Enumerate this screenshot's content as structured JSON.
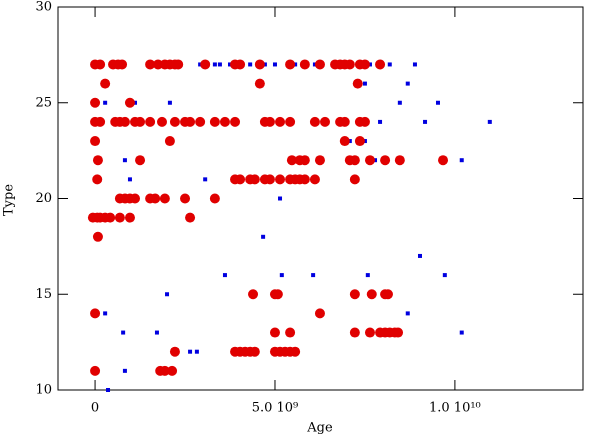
{
  "chart_data": {
    "type": "scatter",
    "x_label": "Age",
    "y_label": "Type",
    "xlim": [
      -1030000000.0,
      13560000000.0
    ],
    "ylim": [
      10,
      30
    ],
    "xticks": [
      0,
      {
        "value": 5000000000.0,
        "label": "5.0 10⁹"
      },
      {
        "value": 10000000000.0,
        "label": "1.0 10¹⁰"
      }
    ],
    "yticks": [
      10,
      15,
      20,
      25,
      30
    ],
    "series": [
      {
        "color": "#0000e0",
        "marker": "square",
        "x": [
          2360000000.0,
          2920000000.0,
          3330000000.0,
          3470000000.0,
          3750000000.0,
          4310000000.0,
          4720000000.0,
          5000000000.0,
          5560000000.0,
          6110000000.0,
          7640000000.0,
          8190000000.0,
          8890000000.0,
          7500000000.0,
          8690000000.0,
          280000000.0,
          1110000000.0,
          2080000000.0,
          8470000000.0,
          9530000000.0,
          5140000000.0,
          7920000000.0,
          9170000000.0,
          10970000000.0,
          7080000000.0,
          7500000000.0,
          830000000.0,
          7780000000.0,
          10190000000.0,
          970000000.0,
          3060000000.0,
          5140000000.0,
          4670000000.0,
          9030000000.0,
          3610000000.0,
          5190000000.0,
          6060000000.0,
          7580000000.0,
          9720000000.0,
          2000000000.0,
          280000000.0,
          8690000000.0,
          780000000.0,
          1720000000.0,
          10190000000.0,
          2640000000.0,
          2830000000.0,
          830000000.0,
          360000000.0
        ],
        "values": [
          27,
          27,
          27,
          27,
          27,
          27,
          27,
          27,
          27,
          27,
          27,
          27,
          27,
          26,
          26,
          25,
          25,
          25,
          25,
          25,
          24,
          24,
          24,
          24,
          23,
          23,
          22,
          22,
          22,
          21,
          21,
          20,
          18,
          17,
          16,
          16,
          16,
          16,
          16,
          15,
          14,
          14,
          13,
          13,
          13,
          12,
          12,
          11,
          10
        ]
      },
      {
        "color": "#e00000",
        "marker": "circle",
        "x": [
          0,
          140000000.0,
          500000000.0,
          640000000.0,
          750000000.0,
          1530000000.0,
          1750000000.0,
          1940000000.0,
          2080000000.0,
          2220000000.0,
          2310000000.0,
          3060000000.0,
          3890000000.0,
          4030000000.0,
          4580000000.0,
          5420000000.0,
          5830000000.0,
          6250000000.0,
          6670000000.0,
          6810000000.0,
          6940000000.0,
          7080000000.0,
          7360000000.0,
          7500000000.0,
          7920000000.0,
          280000000.0,
          4580000000.0,
          7300000000.0,
          0,
          970000000.0,
          0,
          140000000.0,
          560000000.0,
          690000000.0,
          830000000.0,
          1110000000.0,
          1250000000.0,
          1530000000.0,
          1860000000.0,
          2220000000.0,
          2500000000.0,
          2640000000.0,
          2920000000.0,
          3330000000.0,
          3610000000.0,
          3890000000.0,
          4720000000.0,
          4860000000.0,
          5140000000.0,
          5420000000.0,
          6110000000.0,
          6390000000.0,
          6810000000.0,
          6940000000.0,
          7360000000.0,
          7500000000.0,
          0,
          2080000000.0,
          6940000000.0,
          7360000000.0,
          80000000.0,
          1250000000.0,
          5470000000.0,
          5690000000.0,
          5830000000.0,
          6250000000.0,
          7080000000.0,
          7220000000.0,
          7640000000.0,
          8060000000.0,
          8470000000.0,
          9670000000.0,
          60000000.0,
          3890000000.0,
          4030000000.0,
          4310000000.0,
          4440000000.0,
          4720000000.0,
          4860000000.0,
          5140000000.0,
          5420000000.0,
          5560000000.0,
          5690000000.0,
          5830000000.0,
          6110000000.0,
          7220000000.0,
          690000000.0,
          830000000.0,
          970000000.0,
          1110000000.0,
          1530000000.0,
          1670000000.0,
          1940000000.0,
          2500000000.0,
          3330000000.0,
          -60000000.0,
          60000000.0,
          140000000.0,
          280000000.0,
          420000000.0,
          690000000.0,
          970000000.0,
          2640000000.0,
          80000000.0,
          4390000000.0,
          5000000000.0,
          5080000000.0,
          7220000000.0,
          7690000000.0,
          8060000000.0,
          8140000000.0,
          0,
          6250000000.0,
          5000000000.0,
          5420000000.0,
          7220000000.0,
          7640000000.0,
          7920000000.0,
          8060000000.0,
          8190000000.0,
          8330000000.0,
          8420000000.0,
          2220000000.0,
          3890000000.0,
          4030000000.0,
          4170000000.0,
          4310000000.0,
          4440000000.0,
          5000000000.0,
          5140000000.0,
          5280000000.0,
          5420000000.0,
          5560000000.0,
          0,
          1810000000.0,
          1940000000.0,
          2140000000.0
        ],
        "values": [
          27,
          27,
          27,
          27,
          27,
          27,
          27,
          27,
          27,
          27,
          27,
          27,
          27,
          27,
          27,
          27,
          27,
          27,
          27,
          27,
          27,
          27,
          27,
          27,
          27,
          26,
          26,
          26,
          25,
          25,
          24,
          24,
          24,
          24,
          24,
          24,
          24,
          24,
          24,
          24,
          24,
          24,
          24,
          24,
          24,
          24,
          24,
          24,
          24,
          24,
          24,
          24,
          24,
          24,
          24,
          24,
          23,
          23,
          23,
          23,
          22,
          22,
          22,
          22,
          22,
          22,
          22,
          22,
          22,
          22,
          22,
          22,
          21,
          21,
          21,
          21,
          21,
          21,
          21,
          21,
          21,
          21,
          21,
          21,
          21,
          21,
          20,
          20,
          20,
          20,
          20,
          20,
          20,
          20,
          20,
          19,
          19,
          19,
          19,
          19,
          19,
          19,
          19,
          18,
          15,
          15,
          15,
          15,
          15,
          15,
          15,
          14,
          14,
          13,
          13,
          13,
          13,
          13,
          13,
          13,
          13,
          13,
          12,
          12,
          12,
          12,
          12,
          12,
          12,
          12,
          12,
          12,
          12,
          11,
          11,
          11,
          11
        ]
      }
    ]
  }
}
